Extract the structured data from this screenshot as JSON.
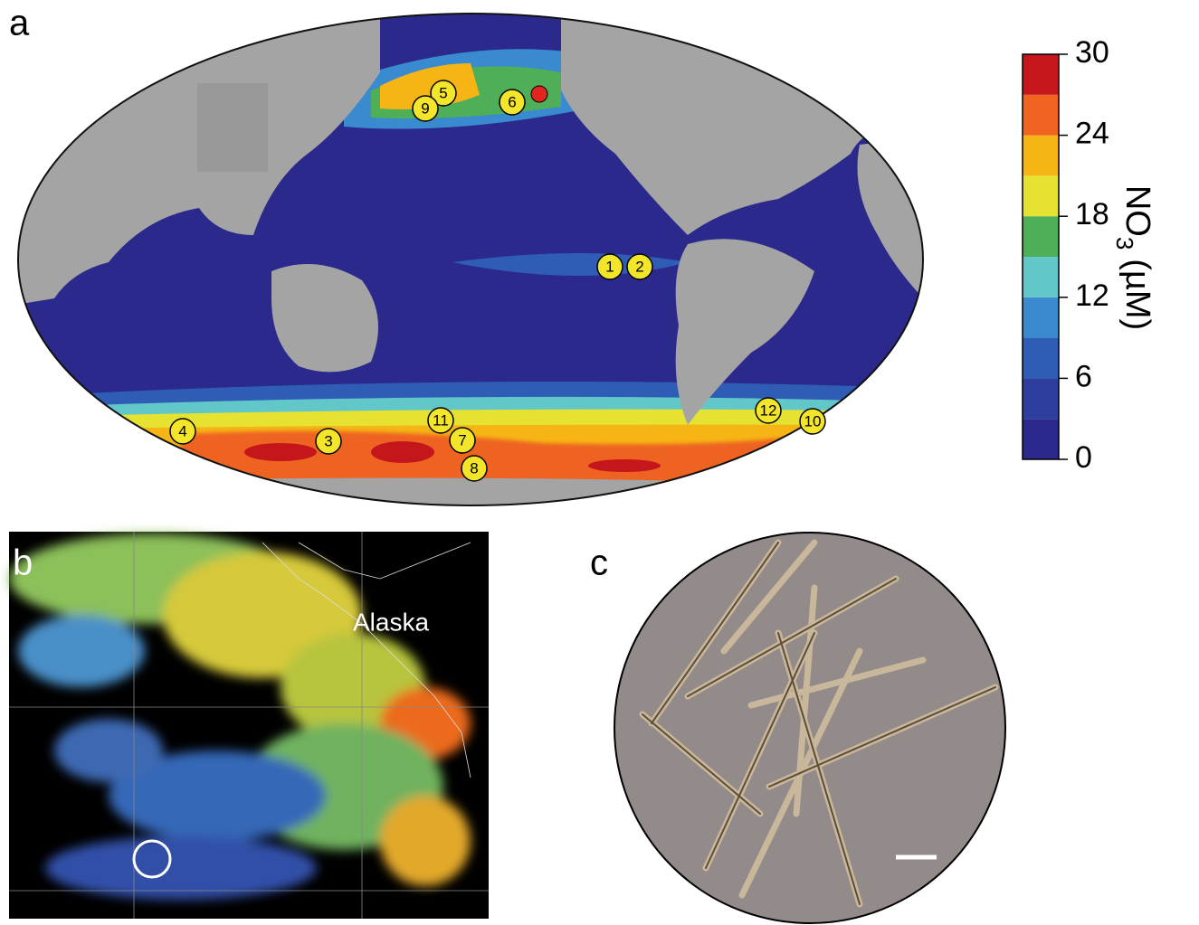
{
  "panels": {
    "a": "a",
    "b": "b",
    "c": "c"
  },
  "map": {
    "sites": [
      "1",
      "2",
      "3",
      "4",
      "5",
      "6",
      "7",
      "8",
      "9",
      "10",
      "11",
      "12"
    ]
  },
  "colorbar": {
    "lim": [
      0,
      30
    ],
    "ticks": [
      0,
      6,
      12,
      18,
      24,
      30
    ],
    "colors": [
      "#2b2a8c",
      "#2e3e9e",
      "#2f5cb5",
      "#3a8ad0",
      "#62c7c9",
      "#4fae58",
      "#e6e232",
      "#f6b515",
      "#ee6420",
      "#c5161b"
    ],
    "label_main": "NO",
    "label_sub": "3",
    "label_unit": "(µM)"
  },
  "satellite": {
    "place": "Alaska"
  }
}
